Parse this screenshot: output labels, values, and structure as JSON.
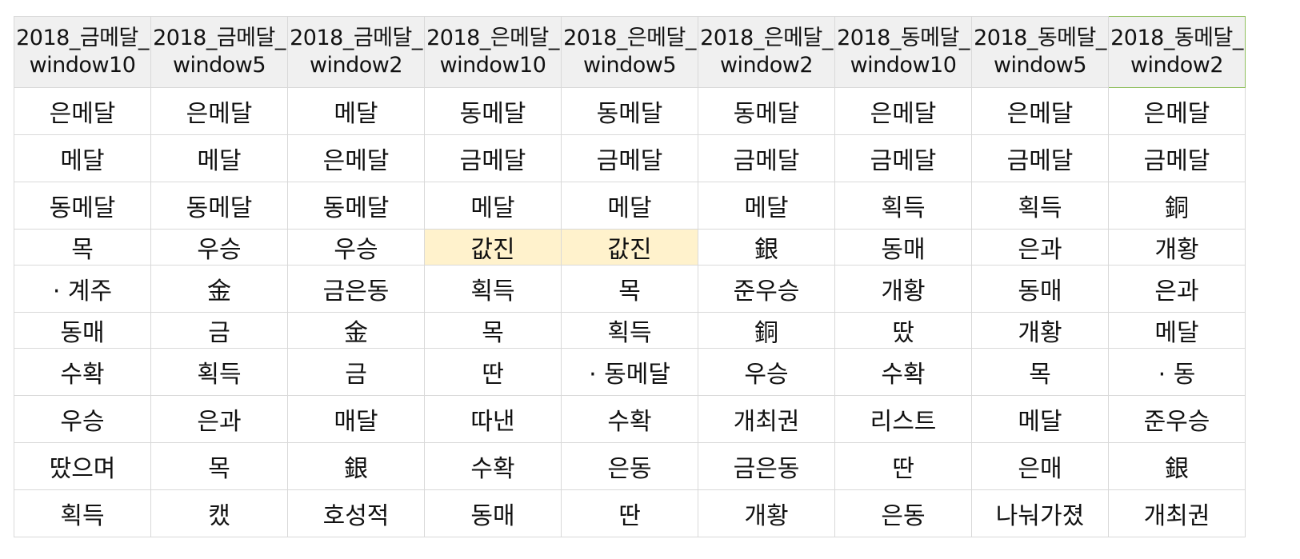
{
  "columns": [
    {
      "line1": "2018_금메달_",
      "line2": "window10"
    },
    {
      "line1": "2018_금메달_",
      "line2": "window5"
    },
    {
      "line1": "2018_금메달_",
      "line2": "window2"
    },
    {
      "line1": "2018_은메달_",
      "line2": "window10"
    },
    {
      "line1": "2018_은메달_",
      "line2": "window5"
    },
    {
      "line1": "2018_은메달_",
      "line2": "window2"
    },
    {
      "line1": "2018_동메달_",
      "line2": "window10"
    },
    {
      "line1": "2018_동메달_",
      "line2": "window5"
    },
    {
      "line1": "2018_동메달_",
      "line2": "window2"
    }
  ],
  "rows": [
    [
      "은메달",
      "은메달",
      "메달",
      "동메달",
      "동메달",
      "동메달",
      "은메달",
      "은메달",
      "은메달"
    ],
    [
      "메달",
      "메달",
      "은메달",
      "금메달",
      "금메달",
      "금메달",
      "금메달",
      "금메달",
      "금메달"
    ],
    [
      "동메달",
      "동메달",
      "동메달",
      "메달",
      "메달",
      "메달",
      "획득",
      "획득",
      "銅"
    ],
    [
      "목",
      "우승",
      "우승",
      "값진",
      "값진",
      "銀",
      "동매",
      "은과",
      "개황"
    ],
    [
      "· 계주",
      "金",
      "금은동",
      "획득",
      "목",
      "준우승",
      "개황",
      "동매",
      "은과"
    ],
    [
      "동매",
      "금",
      "金",
      "목",
      "획득",
      "銅",
      "땄",
      "개황",
      "메달"
    ],
    [
      "수확",
      "획득",
      "금",
      "딴",
      "· 동메달",
      "우승",
      "수확",
      "목",
      "· 동"
    ],
    [
      "우승",
      "은과",
      "매달",
      "따낸",
      "수확",
      "개최권",
      "리스트",
      "메달",
      "준우승"
    ],
    [
      "땄으며",
      "목",
      "銀",
      "수확",
      "은동",
      "금은동",
      "딴",
      "은매",
      "銀"
    ],
    [
      "획득",
      "캤",
      "호성적",
      "동매",
      "딴",
      "개황",
      "은동",
      "나눠가졌",
      "개최권"
    ]
  ],
  "highlight_color": "#fff2cc",
  "selected_header_border": "#8fbf5c"
}
